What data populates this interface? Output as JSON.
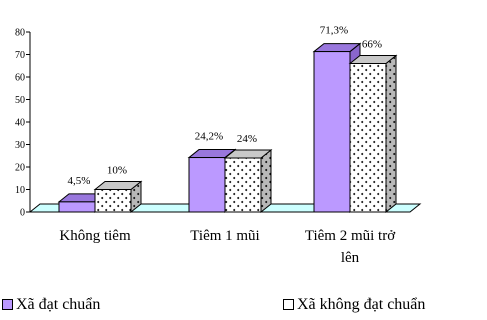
{
  "chart_data": {
    "type": "bar",
    "categories": [
      "Không tiêm",
      "Tiêm 1 mũi",
      "Tiêm 2 mũi trở lên"
    ],
    "categories_display": [
      [
        "Không tiêm"
      ],
      [
        "Tiêm 1 mũi"
      ],
      [
        "Tiêm 2 mũi trở",
        "lên"
      ]
    ],
    "series": [
      {
        "name": "Xã đạt chuẩn",
        "values": [
          4.5,
          24.2,
          71.3
        ],
        "labels": [
          "4,5%",
          "24,2%",
          "71,3%"
        ],
        "color": "#bb99ff"
      },
      {
        "name": "Xã không đạt chuẩn",
        "values": [
          10,
          24,
          66
        ],
        "labels": [
          "10%",
          "24%",
          "66%"
        ],
        "color": "#ffffff",
        "pattern": "dotted-diamond"
      }
    ],
    "ylim": [
      0,
      80
    ],
    "yticks": [
      0,
      10,
      20,
      30,
      40,
      50,
      60,
      70,
      80
    ],
    "floor_color": "#ccffff",
    "legend": "bottom",
    "title": "",
    "xlabel": "",
    "ylabel": "",
    "grid": false
  }
}
